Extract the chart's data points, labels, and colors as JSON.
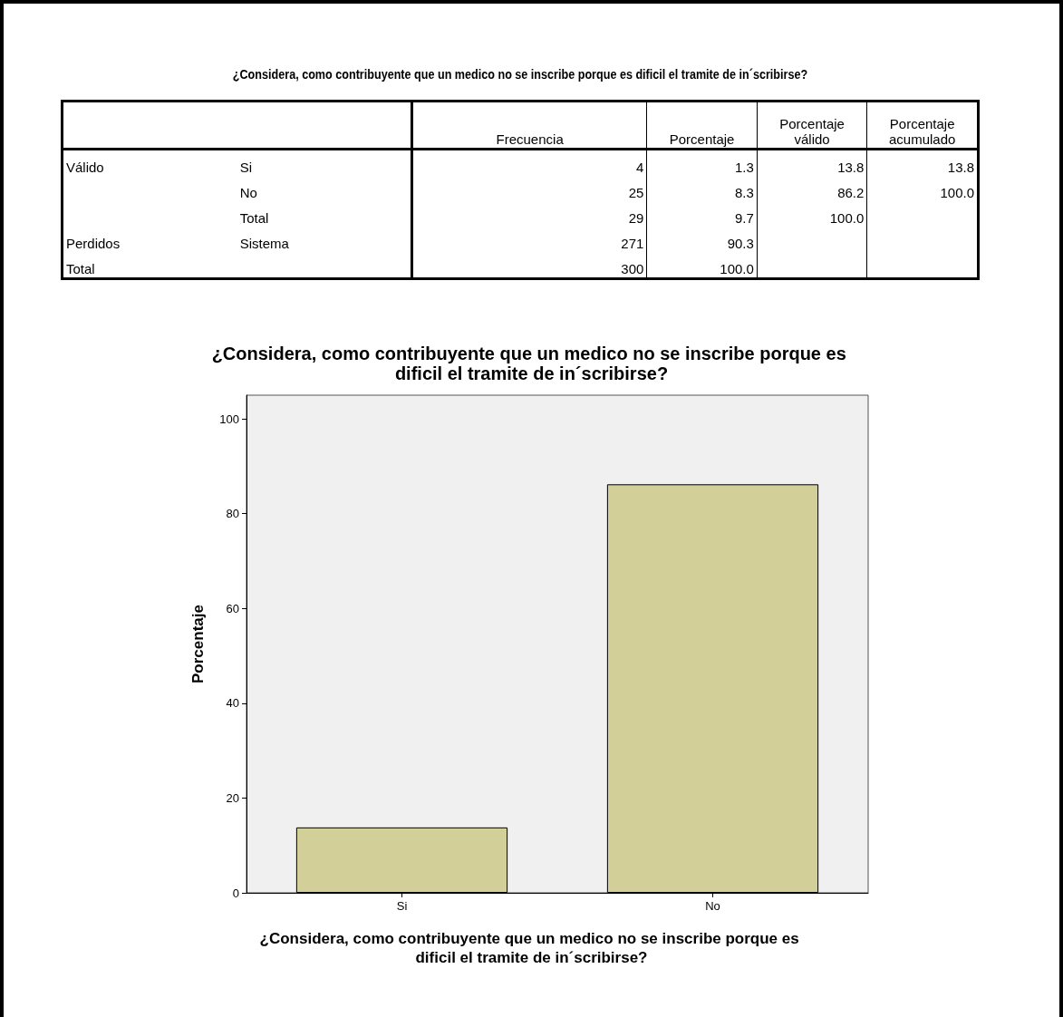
{
  "chart_data": [
    {
      "type": "other",
      "title": "¿Considera, como contribuyente que un medico no se inscribe porque es dificil el tramite de in´scribirse?",
      "annotations": [
        "Frecuencia",
        "Porcentaje",
        "Porcentaje válido",
        "Porcentaje acumulado",
        "Válido",
        "Si",
        "4",
        "1.3",
        "13.8",
        "13.8",
        "No",
        "25",
        "8.3",
        "86.2",
        "100.0",
        "Total",
        "29",
        "9.7",
        "100.0",
        "Perdidos",
        "Sistema",
        "271",
        "90.3",
        "Total",
        "300",
        "100.0"
      ]
    },
    {
      "type": "bar",
      "title": "¿Considera, como contribuyente que un medico no se inscribe porque es dificil el tramite de in´scribirse?",
      "xlabel": "¿Considera, como contribuyente que un medico no se inscribe porque es dificil el tramite de in´scribirse?",
      "ylabel": "Porcentaje",
      "categories": [
        "Si",
        "No"
      ],
      "values": [
        13.8,
        86.2
      ],
      "color": "#d3cf98",
      "ylim": [
        0,
        105
      ],
      "yticks": [
        0,
        20,
        40,
        60,
        80,
        100
      ],
      "grid": false
    }
  ]
}
